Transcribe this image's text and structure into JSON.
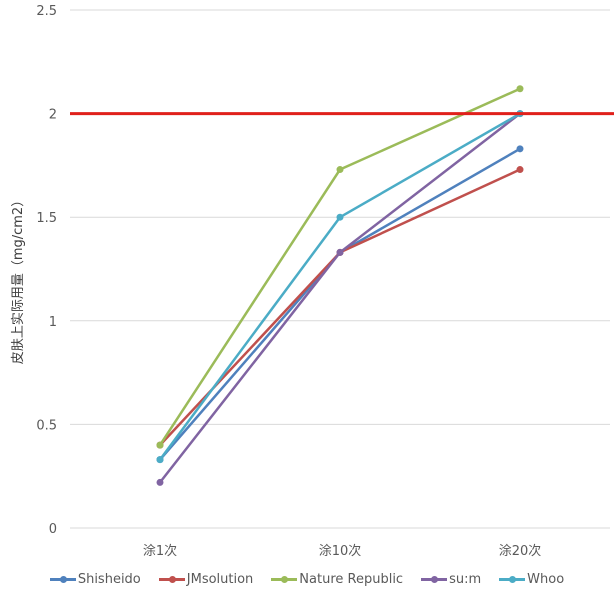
{
  "chart_data": {
    "type": "line",
    "title": "",
    "xlabel": "",
    "ylabel": "皮肤上实际用量（mg/cm2）",
    "categories": [
      "涂1次",
      "涂10次",
      "涂20次"
    ],
    "ylim": [
      0,
      2.5
    ],
    "yticks": [
      "0",
      "0.5",
      "1",
      "1.5",
      "2",
      "2.5"
    ],
    "ytick_values": [
      0,
      0.5,
      1,
      1.5,
      2,
      2.5
    ],
    "grid": true,
    "legend_position": "bottom",
    "reference_line": {
      "value": 2,
      "color": "#e0201b"
    },
    "series": [
      {
        "name": "Shisheido",
        "color": "#4f81bd",
        "values": [
          0.33,
          1.33,
          1.83
        ]
      },
      {
        "name": "JMsolution",
        "color": "#c0504d",
        "values": [
          0.4,
          1.33,
          1.73
        ]
      },
      {
        "name": "Nature Republic",
        "color": "#9bbb59",
        "values": [
          0.4,
          1.73,
          2.12
        ]
      },
      {
        "name": "su:m",
        "color": "#8064a2",
        "values": [
          0.22,
          1.33,
          2.0
        ]
      },
      {
        "name": "Whoo",
        "color": "#4bacc6",
        "values": [
          0.33,
          1.5,
          2.0
        ]
      }
    ]
  }
}
